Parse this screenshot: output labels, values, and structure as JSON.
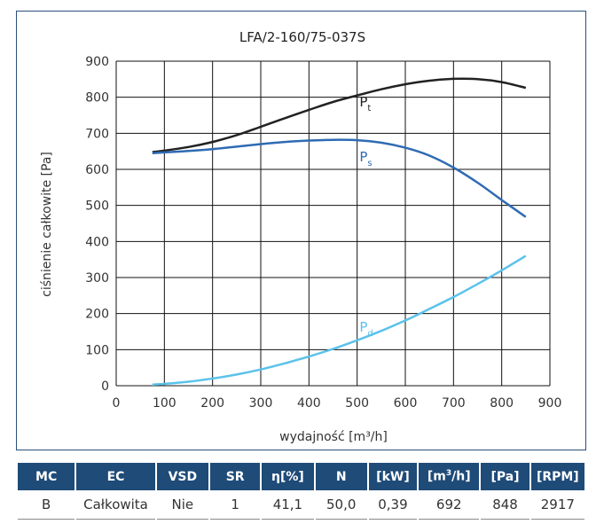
{
  "chart_data": {
    "type": "line",
    "title": "LFA/2-160/75-037S",
    "xlabel": "wydajność [m³/h]",
    "ylabel": "ciśnienie całkowite [Pa]",
    "xlim": [
      0,
      900
    ],
    "ylim": [
      0,
      900
    ],
    "xticks": [
      0,
      100,
      200,
      300,
      400,
      500,
      600,
      700,
      800,
      900
    ],
    "yticks": [
      0,
      100,
      200,
      300,
      400,
      500,
      600,
      700,
      800,
      900
    ],
    "grid": true,
    "series": [
      {
        "name": "Pt",
        "label_main": "P",
        "label_sub": "t",
        "color": "#222222",
        "x": [
          75,
          100,
          150,
          200,
          250,
          300,
          350,
          400,
          450,
          500,
          550,
          600,
          650,
          700,
          750,
          800,
          850
        ],
        "y": [
          648,
          652,
          662,
          676,
          695,
          718,
          742,
          765,
          787,
          805,
          822,
          836,
          846,
          851,
          850,
          842,
          826
        ]
      },
      {
        "name": "Ps",
        "label_main": "P",
        "label_sub": "s",
        "color": "#2f6bb3",
        "x": [
          75,
          100,
          150,
          200,
          250,
          300,
          350,
          400,
          450,
          500,
          550,
          600,
          650,
          700,
          750,
          800,
          850
        ],
        "y": [
          645,
          647,
          651,
          656,
          663,
          670,
          676,
          680,
          682,
          681,
          674,
          660,
          638,
          605,
          563,
          515,
          468
        ]
      },
      {
        "name": "Pd",
        "label_main": "P",
        "label_sub": "d",
        "color": "#5bc2ea",
        "x": [
          75,
          100,
          150,
          200,
          250,
          300,
          350,
          400,
          450,
          500,
          550,
          600,
          650,
          700,
          750,
          800,
          850
        ],
        "y": [
          3,
          5,
          11,
          20,
          31,
          45,
          62,
          81,
          102,
          126,
          152,
          181,
          213,
          246,
          282,
          320,
          360
        ]
      }
    ]
  },
  "table": {
    "headers": [
      "MC",
      "EC",
      "VSD",
      "SR",
      "η[%]",
      "N",
      "[kW]",
      "[m3/h]",
      "[Pa]",
      "[RPM]"
    ],
    "row": [
      "B",
      "Całkowita",
      "Nie",
      "1",
      "41,1",
      "50,0",
      "0,39",
      "692",
      "848",
      "2917"
    ]
  }
}
